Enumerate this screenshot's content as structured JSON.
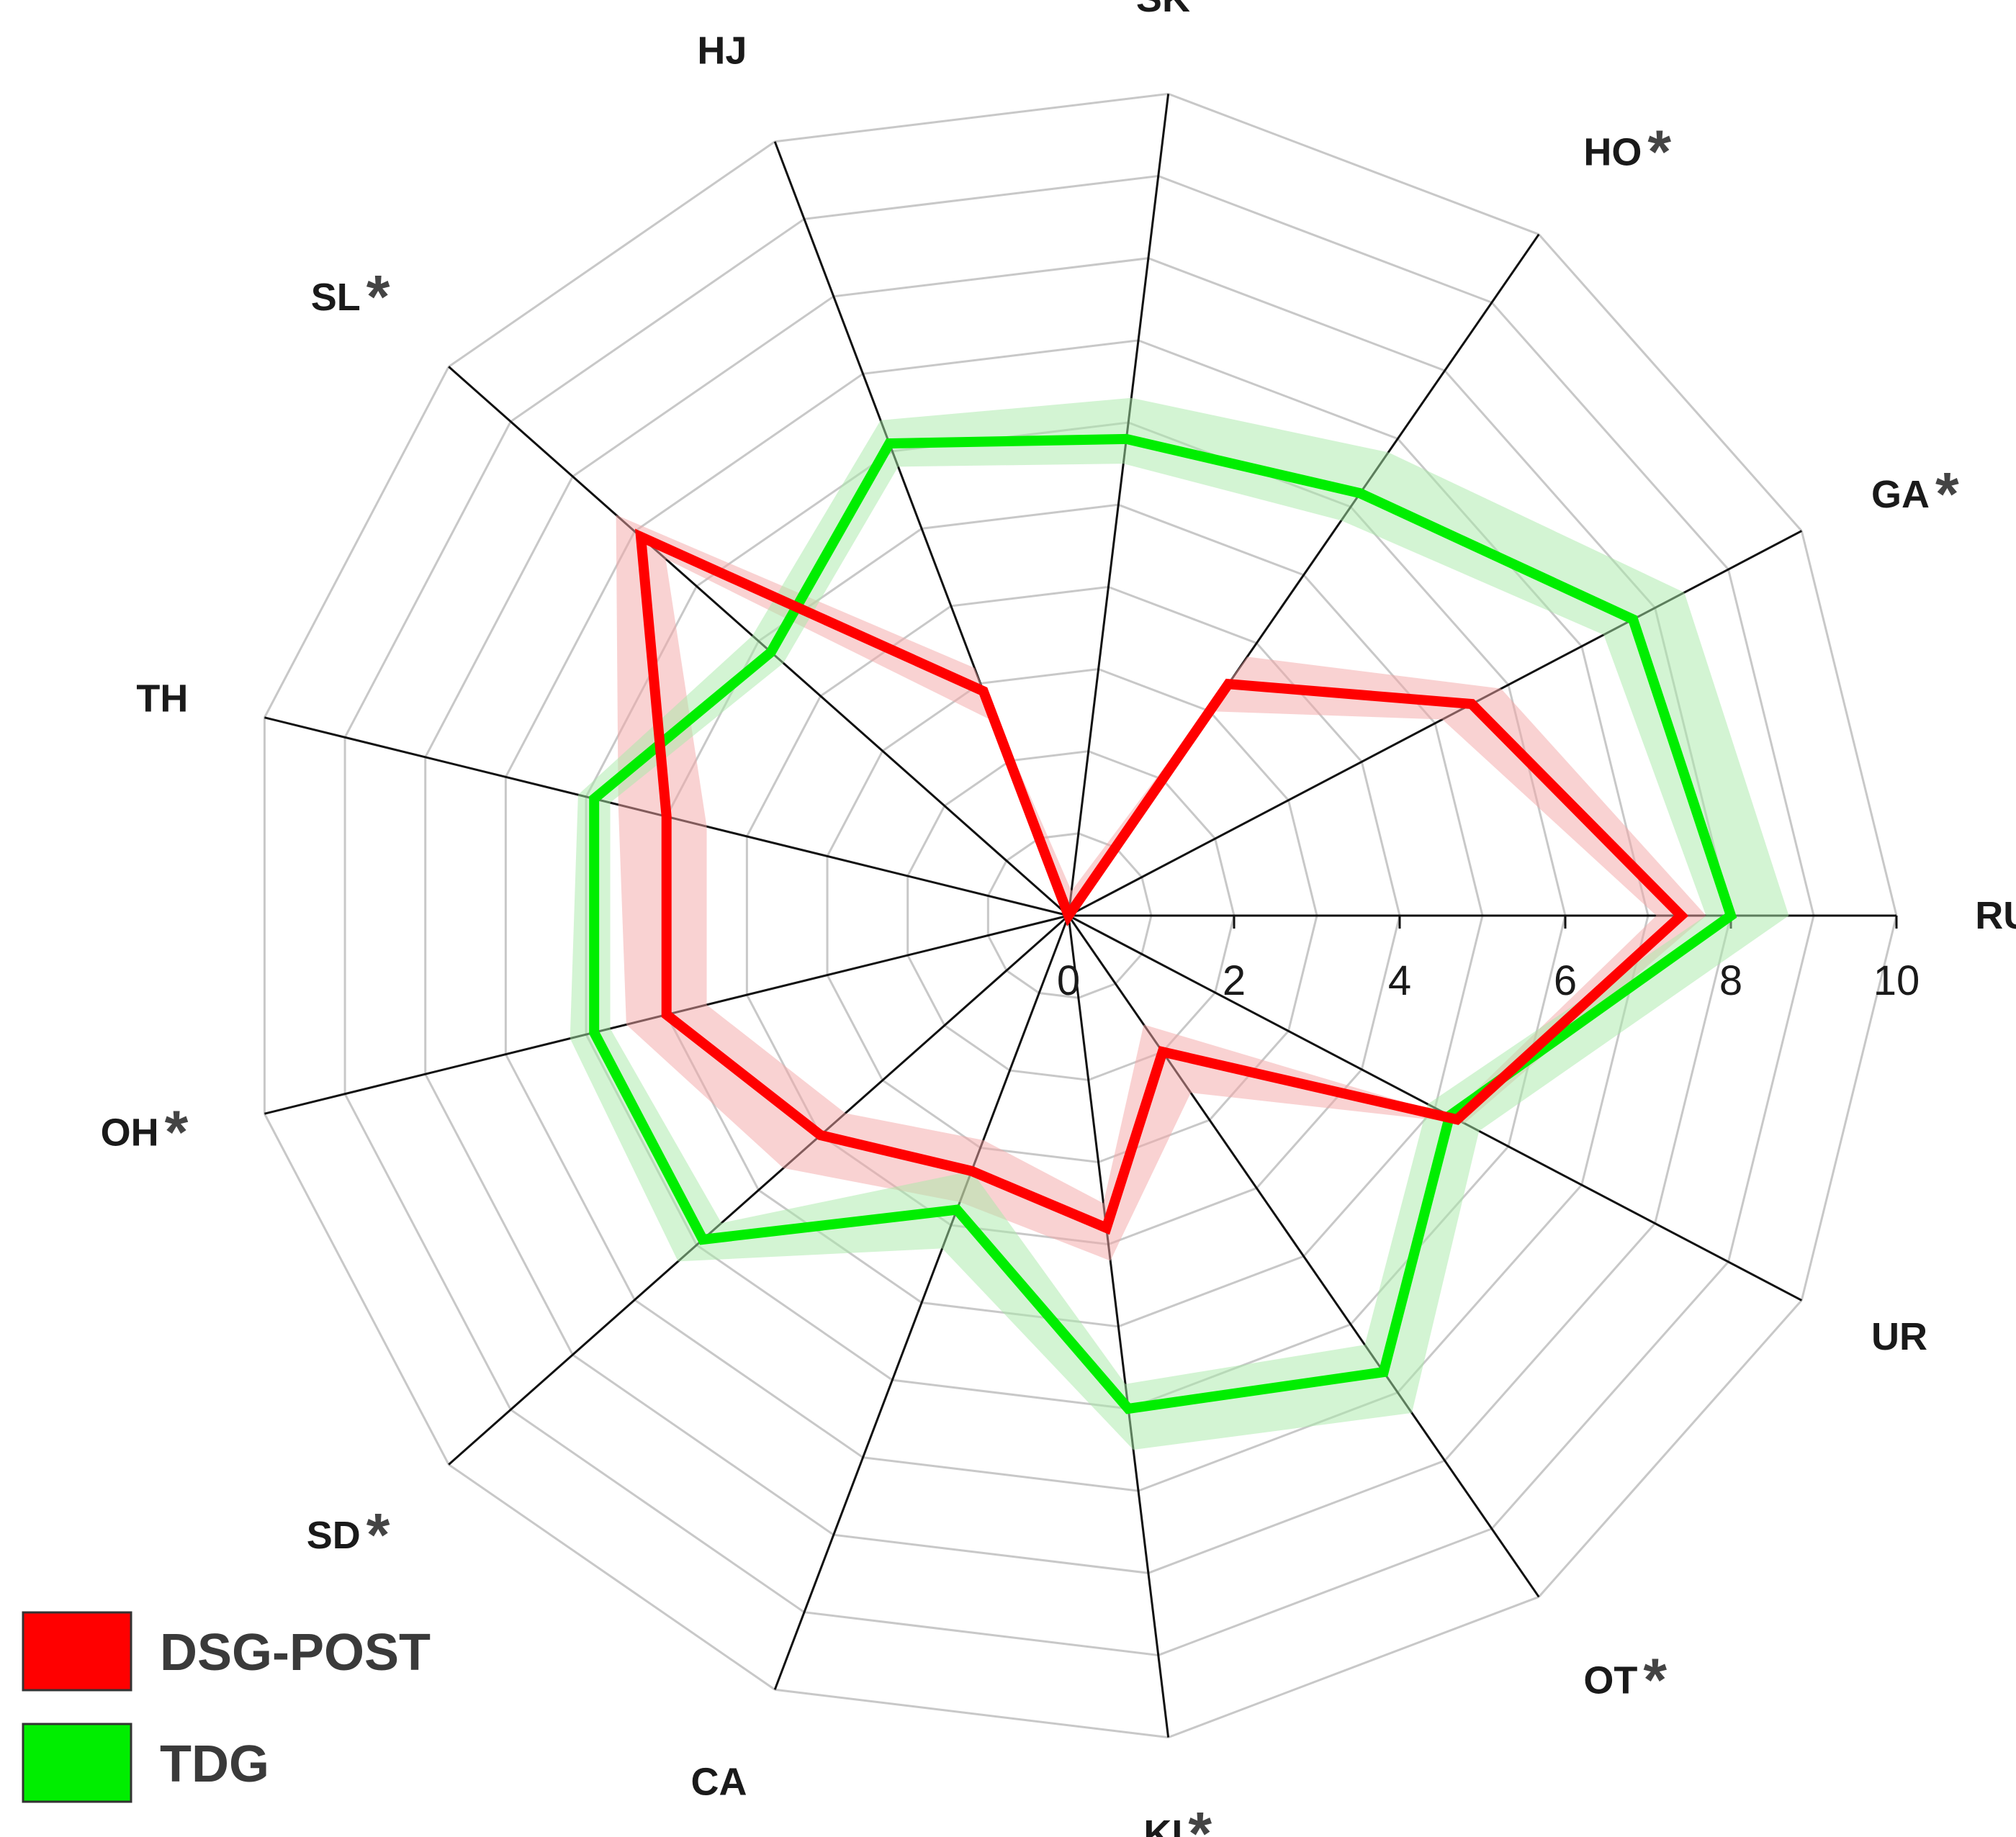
{
  "chart_data": {
    "type": "radar",
    "categories": [
      "RU",
      "GA",
      "HO",
      "SK",
      "HJ",
      "SL",
      "TH",
      "OH",
      "SD",
      "CA",
      "KI",
      "OT",
      "UR"
    ],
    "significant": [
      false,
      true,
      true,
      true,
      false,
      true,
      false,
      true,
      true,
      false,
      true,
      true,
      false
    ],
    "significance_marker": "*",
    "r_ticks": [
      "0",
      "2",
      "4",
      "6",
      "8",
      "10"
    ],
    "r_range": [
      0,
      10
    ],
    "grid": true,
    "legend_position": "bottom-left",
    "series": [
      {
        "name": "DSG-POST",
        "color": "#ff0000",
        "band_color": "#f4a6a6",
        "values": [
          7.4,
          5.5,
          3.4,
          0,
          2.9,
          6.9,
          5.0,
          5.0,
          4.0,
          3.3,
          3.8,
          2.0,
          5.3
        ],
        "band": [
          [
            7.1,
            7.7
          ],
          [
            5.1,
            5.9
          ],
          [
            3.0,
            3.8
          ],
          [
            0,
            0.3
          ],
          [
            2.5,
            3.2
          ],
          [
            6.5,
            7.3
          ],
          [
            4.5,
            5.6
          ],
          [
            4.5,
            5.5
          ],
          [
            3.6,
            4.6
          ],
          [
            2.9,
            3.7
          ],
          [
            3.5,
            4.2
          ],
          [
            1.6,
            2.6
          ],
          [
            5.2,
            5.4
          ]
        ]
      },
      {
        "name": "TDG",
        "color": "#00ee00",
        "band_color": "#a8eaa8",
        "values": [
          8.0,
          7.7,
          6.2,
          5.8,
          6.1,
          4.8,
          5.9,
          5.9,
          5.9,
          3.8,
          6.0,
          6.7,
          5.2
        ],
        "band": [
          [
            7.7,
            8.7
          ],
          [
            7.3,
            8.4
          ],
          [
            5.8,
            6.8
          ],
          [
            5.5,
            6.3
          ],
          [
            5.8,
            6.4
          ],
          [
            4.6,
            5.1
          ],
          [
            5.7,
            6.1
          ],
          [
            5.7,
            6.2
          ],
          [
            5.6,
            6.3
          ],
          [
            3.3,
            4.3
          ],
          [
            5.7,
            6.5
          ],
          [
            6.3,
            7.3
          ],
          [
            4.9,
            5.6
          ]
        ]
      }
    ]
  }
}
